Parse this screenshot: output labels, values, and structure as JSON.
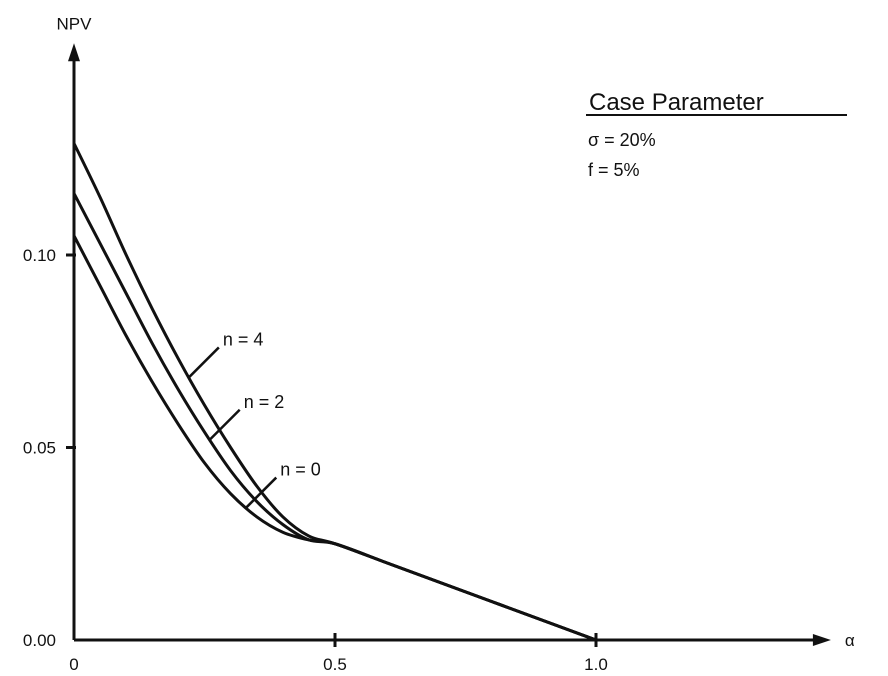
{
  "colors": {
    "ink": "#111111",
    "background": "#ffffff"
  },
  "legend": {
    "title": "Case Parameter",
    "lines": [
      "σ = 20%",
      "f = 5%"
    ]
  },
  "chart_data": {
    "type": "line",
    "title": "",
    "xlabel": "α",
    "ylabel": "NPV",
    "xlim": [
      0,
      1.45
    ],
    "ylim": [
      0,
      0.155
    ],
    "xticks": [
      0,
      0.5,
      1.0
    ],
    "xtick_labels": [
      "0",
      "0.5",
      "1.0"
    ],
    "yticks": [
      0.0,
      0.05,
      0.1
    ],
    "ytick_labels": [
      "0.00",
      "0.05",
      "0.10"
    ],
    "grid": false,
    "legend_position": "top-right",
    "series": [
      {
        "name": "n = 4",
        "label_at": 0.22,
        "x": [
          0,
          0.05,
          0.1,
          0.15,
          0.2,
          0.25,
          0.3,
          0.35,
          0.4,
          0.45,
          0.5,
          0.6,
          0.7,
          0.8,
          0.9,
          1.0
        ],
        "y": [
          0.129,
          0.115,
          0.1,
          0.086,
          0.073,
          0.061,
          0.05,
          0.04,
          0.032,
          0.027,
          0.025,
          0.02,
          0.015,
          0.01,
          0.005,
          0.0
        ]
      },
      {
        "name": "n = 2",
        "label_at": 0.26,
        "x": [
          0,
          0.05,
          0.1,
          0.15,
          0.2,
          0.25,
          0.3,
          0.35,
          0.4,
          0.45,
          0.5,
          0.6,
          0.7,
          0.8,
          0.9,
          1.0
        ],
        "y": [
          0.116,
          0.103,
          0.09,
          0.077,
          0.065,
          0.054,
          0.044,
          0.036,
          0.03,
          0.026,
          0.025,
          0.02,
          0.015,
          0.01,
          0.005,
          0.0
        ]
      },
      {
        "name": "n = 0",
        "label_at": 0.33,
        "x": [
          0,
          0.05,
          0.1,
          0.15,
          0.2,
          0.25,
          0.3,
          0.35,
          0.4,
          0.45,
          0.5,
          0.6,
          0.7,
          0.8,
          0.9,
          1.0
        ],
        "y": [
          0.105,
          0.092,
          0.079,
          0.067,
          0.056,
          0.046,
          0.038,
          0.032,
          0.028,
          0.026,
          0.025,
          0.02,
          0.015,
          0.01,
          0.005,
          0.0
        ]
      }
    ]
  }
}
